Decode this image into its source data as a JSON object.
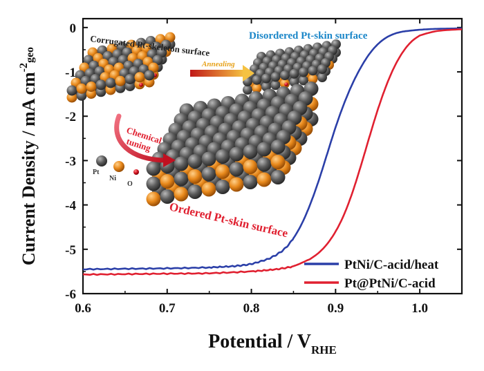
{
  "chart_data": {
    "type": "line",
    "xlabel": "Potential / V",
    "xlabel_sub": "RHE",
    "ylabel": "Current Density / mA cm",
    "ylabel_sup": "-2",
    "ylabel_sub": "geo",
    "xlim": [
      0.6,
      1.05
    ],
    "ylim": [
      -6,
      0.2
    ],
    "xticks": [
      0.6,
      0.7,
      0.8,
      0.9,
      1.0
    ],
    "xtick_labels": [
      "0.6",
      "0.7",
      "0.8",
      "0.9",
      "1.0"
    ],
    "yticks": [
      0,
      -1,
      -2,
      -3,
      -4,
      -5,
      -6
    ],
    "ytick_labels": [
      "0",
      "-1",
      "-2",
      "-3",
      "-4",
      "-5",
      "-6"
    ],
    "legend_position": "bottom-right",
    "series": [
      {
        "name": "PtNi/C-acid/heat",
        "color": "#2b3fa8",
        "x": [
          0.6,
          0.65,
          0.7,
          0.75,
          0.78,
          0.8,
          0.82,
          0.83,
          0.84,
          0.85,
          0.86,
          0.87,
          0.88,
          0.89,
          0.9,
          0.91,
          0.92,
          0.93,
          0.94,
          0.95,
          0.96,
          0.97,
          0.98,
          1.0,
          1.02,
          1.05
        ],
        "y": [
          -5.45,
          -5.44,
          -5.43,
          -5.41,
          -5.38,
          -5.33,
          -5.22,
          -5.12,
          -4.98,
          -4.75,
          -4.42,
          -3.98,
          -3.45,
          -2.85,
          -2.25,
          -1.72,
          -1.27,
          -0.9,
          -0.6,
          -0.38,
          -0.23,
          -0.14,
          -0.09,
          -0.05,
          -0.03,
          -0.02
        ]
      },
      {
        "name": "Pt@PtNi/C-acid",
        "color": "#e02030",
        "x": [
          0.6,
          0.65,
          0.7,
          0.75,
          0.8,
          0.83,
          0.85,
          0.87,
          0.88,
          0.89,
          0.9,
          0.91,
          0.92,
          0.93,
          0.94,
          0.95,
          0.96,
          0.97,
          0.98,
          0.99,
          1.0,
          1.02,
          1.05
        ],
        "y": [
          -5.57,
          -5.56,
          -5.55,
          -5.54,
          -5.5,
          -5.45,
          -5.38,
          -5.22,
          -5.08,
          -4.88,
          -4.6,
          -4.22,
          -3.72,
          -3.12,
          -2.48,
          -1.86,
          -1.32,
          -0.88,
          -0.55,
          -0.32,
          -0.18,
          -0.08,
          -0.04
        ]
      }
    ]
  },
  "inset": {
    "label_corrugated": "Corrugated Pt-skeleton surface",
    "label_disordered": "Disordered Pt-skin surface",
    "label_annealing": "Annealing",
    "label_chemical": "Chemical",
    "label_tuning": "tuning",
    "label_ordered": "Ordered Pt-skin surface",
    "key_pt": "Pt",
    "key_ni": "Ni",
    "key_o": "O",
    "colors": {
      "pt": "#5a5a5a",
      "ni": "#e8891c",
      "o": "#c8102e",
      "corrugated_text": "#222222",
      "disordered_text": "#1a86c8",
      "ordered_text": "#e02030"
    }
  }
}
